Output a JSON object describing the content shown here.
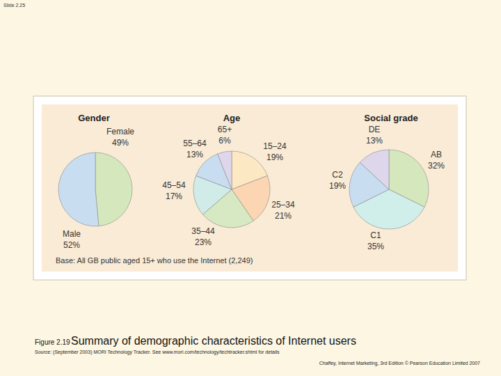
{
  "slide_label": "Slide 2.25",
  "chart_data": [
    {
      "type": "pie",
      "title": "Gender",
      "categories": [
        "Female",
        "Male"
      ],
      "values": [
        49,
        52
      ],
      "value_labels": [
        "49%",
        "52%"
      ],
      "data_labels": true,
      "colors": [
        "#d5e8bd",
        "#c9ddf1"
      ]
    },
    {
      "type": "pie",
      "title": "Age",
      "categories": [
        "15–24",
        "25–34",
        "35–44",
        "45–54",
        "55–64",
        "65+"
      ],
      "values": [
        19,
        21,
        23,
        17,
        13,
        6
      ],
      "value_labels": [
        "19%",
        "21%",
        "23%",
        "17%",
        "13%",
        "6%"
      ],
      "data_labels": true,
      "colors": [
        "#fde8c4",
        "#fcd5b3",
        "#d7e9c2",
        "#d0ebe8",
        "#c9ddf1",
        "#ded7ec"
      ]
    },
    {
      "type": "pie",
      "title": "Social grade",
      "categories": [
        "AB",
        "C1",
        "C2",
        "DE"
      ],
      "values": [
        32,
        35,
        19,
        13
      ],
      "value_labels": [
        "32%",
        "35%",
        "19%",
        "13%"
      ],
      "data_labels": true,
      "colors": [
        "#d5e8bd",
        "#d0eeea",
        "#c9ddf1",
        "#ded7ec"
      ]
    }
  ],
  "base_note": "Base: All GB public aged 15+ who use the Internet (2,249)",
  "figure_label": "Figure 2.19",
  "caption": "Summary of demographic characteristics of Internet users",
  "source": "Source: (September 2003) MORI Technology Tracker. See www.mori.com/technology/techtracker.shtml for details",
  "footer": "Chaffey, Internet Marketing, 3rd Edition © Pearson Education Limited 2007"
}
